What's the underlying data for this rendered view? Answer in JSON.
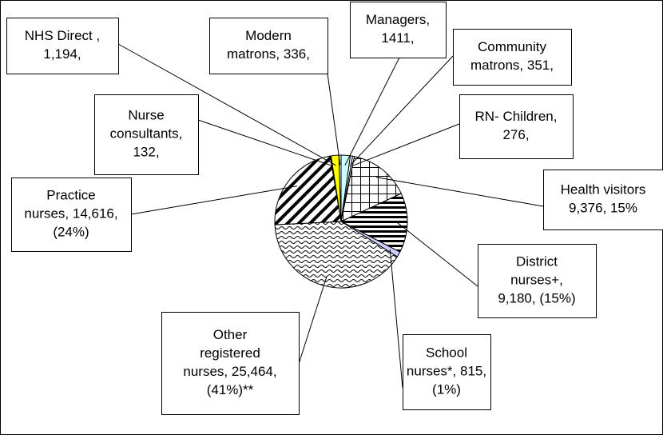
{
  "chart_data": {
    "type": "pie",
    "values": [
      1411,
      351,
      276,
      9376,
      9180,
      815,
      25464,
      14616,
      132,
      1194,
      336
    ],
    "value_labels": [
      [
        "Managers,",
        "1411,"
      ],
      [
        "Community",
        "matrons, 351,"
      ],
      [
        "RN- Children,",
        "276,"
      ],
      [
        "Health visitors",
        "9,376, 15%"
      ],
      [
        "District",
        "nurses+,",
        "9,180, (15%)"
      ],
      [
        "School",
        "nurses*, 815,",
        "(1%)"
      ],
      [
        "Other",
        "registered",
        "nurses, 25,464,",
        "(41%)**"
      ],
      [
        "Practice",
        "nurses, 14,616,",
        "(24%)"
      ],
      [
        "Nurse",
        "consultants,",
        "132,"
      ],
      [
        "NHS Direct ,",
        "1,194,"
      ],
      [
        "Modern",
        "matrons, 336,"
      ]
    ],
    "fills": [
      "#ccffff",
      "#ffffff",
      "#ffffff",
      "grid",
      "horizontal",
      "#ccccff",
      "wave",
      "diagonal",
      "#ffffff",
      "#ffff00",
      "#ffffff"
    ]
  }
}
